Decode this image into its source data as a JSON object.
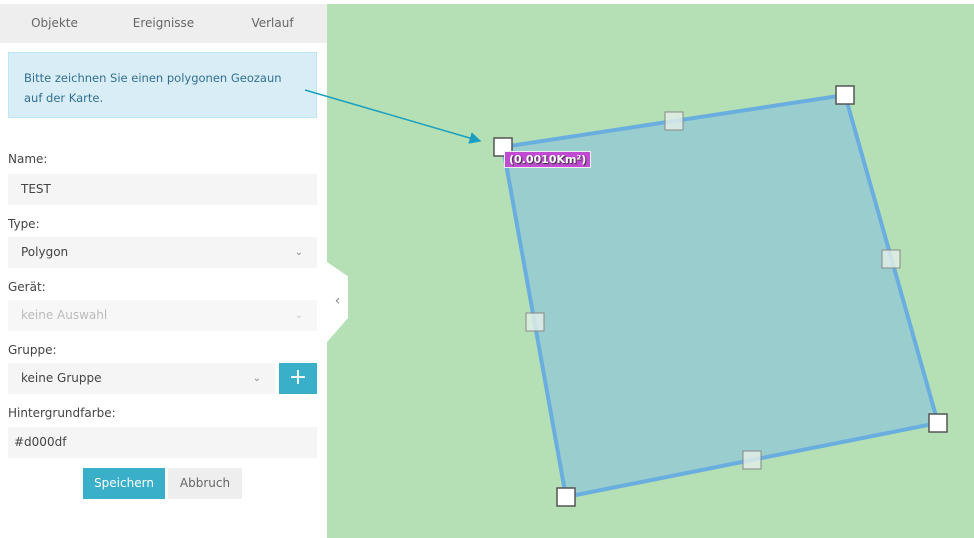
{
  "tabs": [
    "Objekte",
    "Ereignisse",
    "Verlauf"
  ],
  "info": "Bitte zeichnen Sie einen polygonen Geozaun auf der Karte.",
  "form": {
    "name_label": "Name:",
    "name_value": "TEST",
    "type_label": "Type:",
    "type_value": "Polygon",
    "device_label": "Gerät:",
    "device_value": "keine Auswahl",
    "group_label": "Gruppe:",
    "group_value": "keine Gruppe",
    "color_label": "Hintergrundfarbe:",
    "color_value": "#d000df",
    "save": "Speichern",
    "cancel": "Abbruch"
  },
  "map": {
    "area_label": "(0.0010Km²)",
    "fill_color": "#d000df"
  }
}
